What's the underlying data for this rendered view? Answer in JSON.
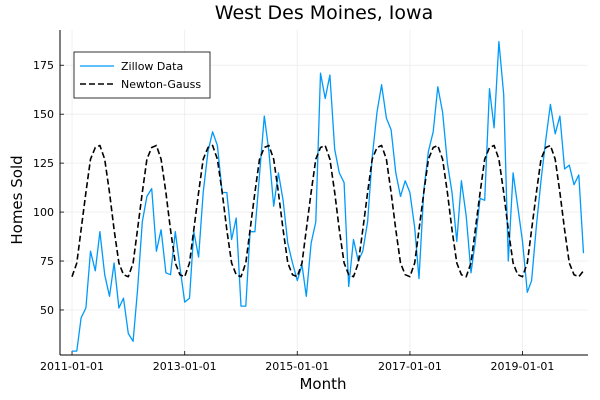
{
  "chart_data": {
    "type": "line",
    "title": "West Des Moines, Iowa",
    "xlabel": "Month",
    "ylabel": "Homes Sold",
    "xlim": [
      "2010-10-15",
      "2020-03-01"
    ],
    "ylim": [
      27,
      193
    ],
    "x_ticks": [
      "2011-01-01",
      "2013-01-01",
      "2015-01-01",
      "2017-01-01",
      "2019-01-01"
    ],
    "y_ticks": [
      50,
      75,
      100,
      125,
      150,
      175
    ],
    "grid": true,
    "legend_position": "top-left",
    "x_start": "2011-01",
    "x_frequency": "monthly",
    "series": [
      {
        "name": "Zillow Data",
        "color": "#009AFA",
        "style": "solid",
        "values": [
          29,
          29,
          46,
          51,
          80,
          70,
          90,
          68,
          57,
          74,
          51,
          56,
          38,
          34,
          60,
          95,
          108,
          112,
          80,
          91,
          69,
          68,
          90,
          72,
          54,
          56,
          90,
          77,
          110,
          131,
          141,
          134,
          110,
          110,
          86,
          97,
          52,
          52,
          90,
          90,
          119,
          149,
          131,
          103,
          120,
          106,
          84,
          74,
          65,
          73,
          57,
          84,
          95,
          171,
          158,
          170,
          132,
          120,
          115,
          62,
          86,
          75,
          80,
          95,
          128,
          151,
          165,
          148,
          142,
          120,
          108,
          116,
          110,
          92,
          66,
          111,
          131,
          141,
          164,
          151,
          125,
          110,
          85,
          116,
          98,
          69,
          85,
          107,
          106,
          163,
          143,
          187,
          160,
          75,
          120,
          103,
          85,
          59,
          65,
          93,
          116,
          137,
          155,
          140,
          149,
          122,
          124,
          114,
          119,
          79
        ]
      },
      {
        "name": "Newton-Gauss",
        "color": "#000000",
        "style": "dashed",
        "values": [
          67,
          74,
          91,
          110,
          127,
          133,
          134,
          127,
          110,
          91,
          74,
          68,
          67,
          74,
          91,
          110,
          127,
          133,
          134,
          127,
          110,
          91,
          74,
          68,
          67,
          74,
          91,
          110,
          127,
          133,
          134,
          127,
          110,
          91,
          74,
          68,
          67,
          74,
          91,
          110,
          127,
          133,
          134,
          127,
          110,
          91,
          74,
          68,
          67,
          74,
          91,
          110,
          127,
          133,
          134,
          127,
          110,
          91,
          74,
          68,
          67,
          74,
          91,
          110,
          127,
          133,
          134,
          127,
          110,
          91,
          74,
          68,
          67,
          74,
          91,
          110,
          127,
          133,
          134,
          127,
          110,
          91,
          74,
          68,
          67,
          74,
          91,
          110,
          127,
          133,
          134,
          127,
          110,
          91,
          74,
          68,
          67,
          74,
          91,
          110,
          127,
          133,
          134,
          127,
          110,
          91,
          74,
          68,
          67,
          70
        ]
      }
    ]
  }
}
